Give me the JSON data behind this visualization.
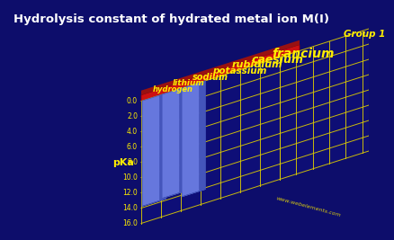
{
  "title": "Hydrolysis constant of hydrated metal ion M(I)",
  "ylabel": "pKa",
  "x_label": "Group 1",
  "elements": [
    "hydrogen",
    "lithium",
    "sodium",
    "potassium",
    "rubidium",
    "caesium",
    "francium"
  ],
  "values": [
    13.8,
    13.6,
    14.2,
    0.0,
    0.0,
    0.0,
    0.0
  ],
  "bar_color": "#7788ee",
  "base_color": "#cc1111",
  "background_color": "#0d0d6b",
  "grid_color": "#ddcc00",
  "title_color": "#ffffff",
  "label_color": "#ffee00",
  "tick_color": "#ffee00",
  "ylim_max": 16.0,
  "yticks": [
    0.0,
    2.0,
    4.0,
    6.0,
    8.0,
    10.0,
    12.0,
    14.0,
    16.0
  ],
  "watermark": "www.webelements.com",
  "title_fontsize": 9.5,
  "label_fontsize": 7
}
